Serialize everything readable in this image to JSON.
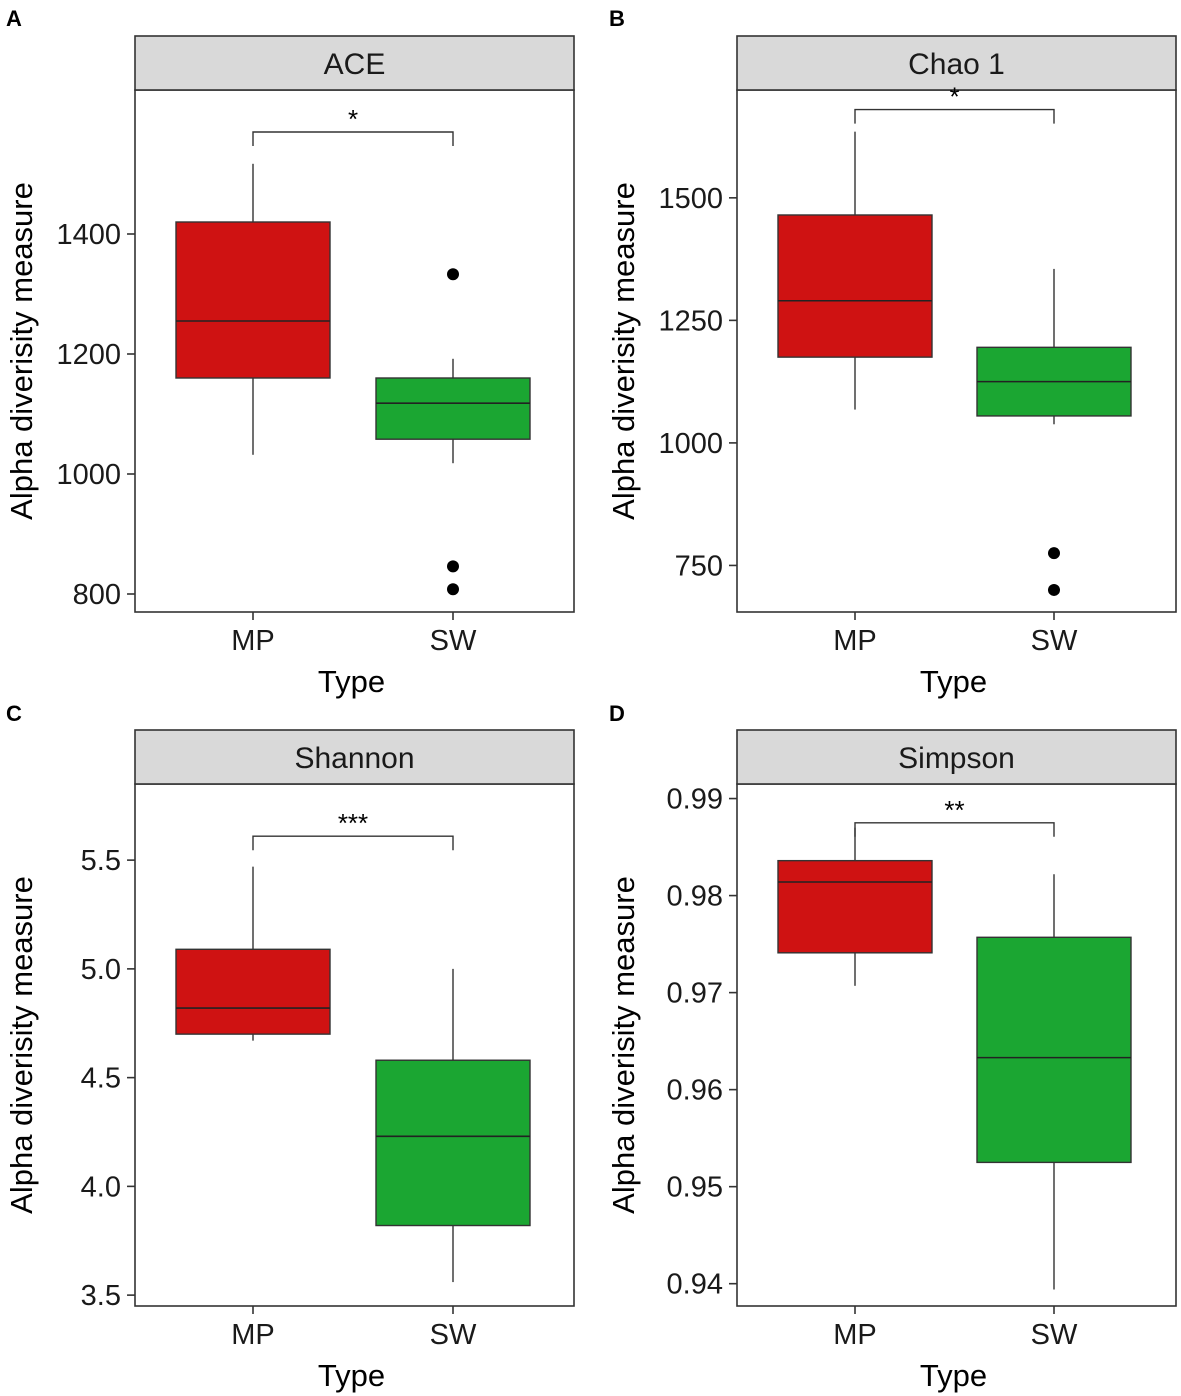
{
  "colors": {
    "MP": "#CF1212",
    "SW": "#1BA632",
    "strip": "#D9D9D9"
  },
  "chart_data": [
    {
      "type": "box",
      "panel": "A",
      "title": "ACE",
      "xlabel": "Type",
      "ylabel": "Alpha diverisity measure",
      "categories": [
        "MP",
        "SW"
      ],
      "ylim": [
        770,
        1640
      ],
      "yticks": [
        800,
        1000,
        1200,
        1400
      ],
      "ytick_labels": [
        "800",
        "1000",
        "1200",
        "1400"
      ],
      "boxes": [
        {
          "category": "MP",
          "whisker_low": 1032,
          "q1": 1160,
          "median": 1255,
          "q3": 1420,
          "whisker_high": 1517,
          "outliers": []
        },
        {
          "category": "SW",
          "whisker_low": 1018,
          "q1": 1058,
          "median": 1118,
          "q3": 1160,
          "whisker_high": 1192,
          "outliers": [
            1333,
            846,
            808
          ]
        }
      ],
      "significance": {
        "label": "*",
        "y": 1570
      }
    },
    {
      "type": "box",
      "panel": "B",
      "title": "Chao 1",
      "xlabel": "Type",
      "ylabel": "Alpha diverisity measure",
      "categories": [
        "MP",
        "SW"
      ],
      "ylim": [
        655,
        1720
      ],
      "yticks": [
        750,
        1000,
        1250,
        1500
      ],
      "ytick_labels": [
        "750",
        "1000",
        "1250",
        "1500"
      ],
      "boxes": [
        {
          "category": "MP",
          "whisker_low": 1068,
          "q1": 1175,
          "median": 1290,
          "q3": 1465,
          "whisker_high": 1635,
          "outliers": []
        },
        {
          "category": "SW",
          "whisker_low": 1038,
          "q1": 1055,
          "median": 1125,
          "q3": 1195,
          "whisker_high": 1355,
          "outliers": [
            775,
            700
          ]
        }
      ],
      "significance": {
        "label": "*",
        "y": 1680
      }
    },
    {
      "type": "box",
      "panel": "C",
      "title": "Shannon",
      "xlabel": "Type",
      "ylabel": "Alpha diverisity measure",
      "categories": [
        "MP",
        "SW"
      ],
      "ylim": [
        3.45,
        5.85
      ],
      "yticks": [
        3.5,
        4.0,
        4.5,
        5.0,
        5.5
      ],
      "ytick_labels": [
        "3.5",
        "4.0",
        "4.5",
        "5.0",
        "5.5"
      ],
      "boxes": [
        {
          "category": "MP",
          "whisker_low": 4.67,
          "q1": 4.7,
          "median": 4.82,
          "q3": 5.09,
          "whisker_high": 5.47,
          "outliers": []
        },
        {
          "category": "SW",
          "whisker_low": 3.56,
          "q1": 3.82,
          "median": 4.23,
          "q3": 4.58,
          "whisker_high": 5.0,
          "outliers": []
        }
      ],
      "significance": {
        "label": "***",
        "y": 5.61
      }
    },
    {
      "type": "box",
      "panel": "D",
      "title": "Simpson",
      "xlabel": "Type",
      "ylabel": "Alpha diverisity measure",
      "categories": [
        "MP",
        "SW"
      ],
      "ylim": [
        0.9377,
        0.9915
      ],
      "yticks": [
        0.94,
        0.95,
        0.96,
        0.97,
        0.98,
        0.99
      ],
      "ytick_labels": [
        "0.94",
        "0.95",
        "0.96",
        "0.97",
        "0.98",
        "0.99"
      ],
      "boxes": [
        {
          "category": "MP",
          "whisker_low": 0.9707,
          "q1": 0.9741,
          "median": 0.9814,
          "q3": 0.9836,
          "whisker_high": 0.987,
          "outliers": []
        },
        {
          "category": "SW",
          "whisker_low": 0.9394,
          "q1": 0.9525,
          "median": 0.9633,
          "q3": 0.9757,
          "whisker_high": 0.9822,
          "outliers": []
        }
      ],
      "significance": {
        "label": "**",
        "y": 0.9875
      }
    }
  ]
}
